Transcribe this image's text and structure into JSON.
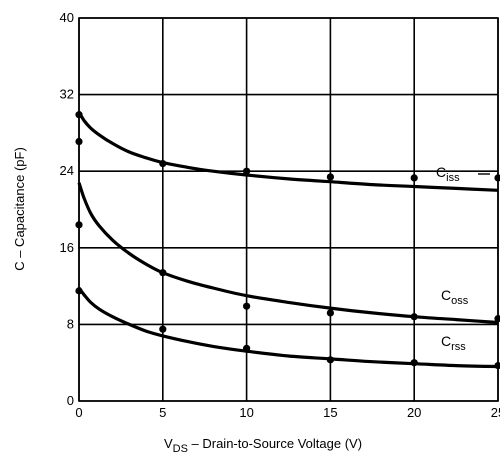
{
  "chart_data": {
    "type": "line",
    "xlabel_main": "V",
    "xlabel_sub": "DS",
    "xlabel_rest": " – Drain-to-Source Voltage (V)",
    "ylabel": "C – Capacitance (pF)",
    "xlim": [
      0,
      25
    ],
    "ylim": [
      0,
      40
    ],
    "xticks": [
      0,
      5,
      10,
      15,
      20,
      25
    ],
    "xtick_labels": [
      "0",
      "5",
      "10",
      "15",
      "20",
      "25"
    ],
    "yticks": [
      0,
      8,
      16,
      24,
      32,
      40
    ],
    "ytick_labels": [
      "0",
      "8",
      "16",
      "24",
      "32",
      "40"
    ],
    "grid": true,
    "series": [
      {
        "name_main": "C",
        "name_sub": "iss",
        "curve": {
          "x": [
            0,
            0.3,
            0.7,
            1.2,
            2,
            3,
            4,
            5,
            6.5,
            8,
            10,
            12.5,
            15,
            17.5,
            20,
            22.5,
            25
          ],
          "y": [
            30.2,
            29.3,
            28.5,
            27.8,
            26.9,
            26.0,
            25.4,
            24.9,
            24.4,
            24.0,
            23.6,
            23.2,
            22.9,
            22.6,
            22.4,
            22.2,
            22.0
          ]
        },
        "points": {
          "x": [
            0,
            0,
            5,
            10,
            15,
            20,
            25
          ],
          "y": [
            29.9,
            27.1,
            24.8,
            24.0,
            23.4,
            23.3,
            23.3
          ]
        }
      },
      {
        "name_main": "C",
        "name_sub": "oss",
        "curve": {
          "x": [
            0,
            0.3,
            0.7,
            1.2,
            2,
            3,
            4,
            5,
            6.5,
            8,
            10,
            12.5,
            15,
            17.5,
            20,
            22.5,
            25
          ],
          "y": [
            22.8,
            21.2,
            19.6,
            18.3,
            16.8,
            15.4,
            14.3,
            13.4,
            12.5,
            11.8,
            11.0,
            10.3,
            9.7,
            9.2,
            8.8,
            8.5,
            8.2
          ]
        },
        "points": {
          "x": [
            0,
            5,
            10,
            15,
            20,
            25
          ],
          "y": [
            18.4,
            13.4,
            9.9,
            9.2,
            8.8,
            8.6
          ]
        }
      },
      {
        "name_main": "C",
        "name_sub": "rss",
        "curve": {
          "x": [
            0,
            0.3,
            0.7,
            1.2,
            2,
            3,
            4,
            5,
            6.5,
            8,
            10,
            12.5,
            15,
            17.5,
            20,
            22.5,
            25
          ],
          "y": [
            11.8,
            11.1,
            10.3,
            9.6,
            8.8,
            8.0,
            7.3,
            6.8,
            6.2,
            5.7,
            5.2,
            4.7,
            4.4,
            4.1,
            3.9,
            3.7,
            3.6
          ]
        },
        "points": {
          "x": [
            0,
            5,
            10,
            15,
            20,
            25
          ],
          "y": [
            11.5,
            7.5,
            5.5,
            4.3,
            4.0,
            3.7
          ]
        }
      }
    ]
  }
}
